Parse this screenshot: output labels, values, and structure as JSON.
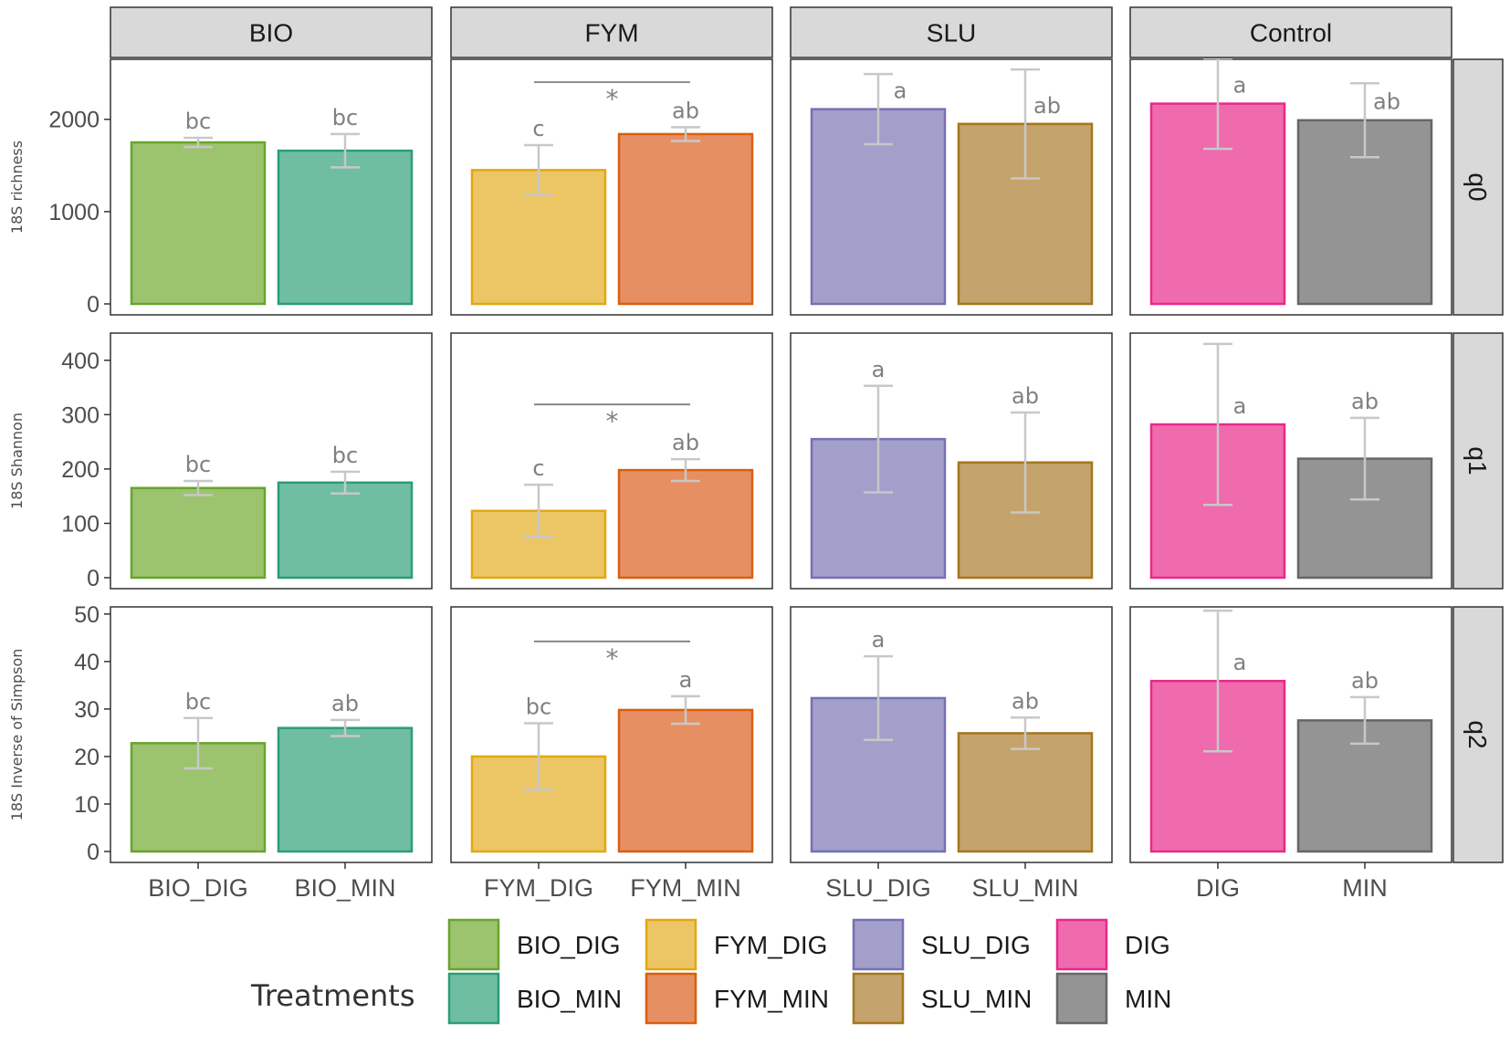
{
  "chart_data": {
    "type": "bar",
    "facet_columns": [
      "BIO",
      "FYM",
      "SLU",
      "Control"
    ],
    "facet_rows": [
      {
        "strip": "q0",
        "ylabel": "18S richness",
        "ylim": [
          0,
          2650
        ],
        "yticks": [
          0,
          1000,
          2000
        ]
      },
      {
        "strip": "q1",
        "ylabel": "18S Shannon",
        "ylim": [
          0,
          450
        ],
        "yticks": [
          0,
          100,
          200,
          300,
          400
        ]
      },
      {
        "strip": "q2",
        "ylabel": "18S Inverse of Simpson",
        "ylim": [
          0,
          51.5
        ],
        "yticks": [
          0,
          10,
          20,
          30,
          40,
          50
        ]
      }
    ],
    "categories": [
      [
        "BIO_DIG",
        "BIO_MIN"
      ],
      [
        "FYM_DIG",
        "FYM_MIN"
      ],
      [
        "SLU_DIG",
        "SLU_MIN"
      ],
      [
        "DIG",
        "MIN"
      ]
    ],
    "series": [
      {
        "row": "q0",
        "values": [
          [
            1750,
            1660
          ],
          [
            1450,
            1840
          ],
          [
            2110,
            1950
          ],
          [
            2170,
            1990
          ]
        ],
        "errors": [
          [
            50,
            180
          ],
          [
            270,
            75
          ],
          [
            380,
            590
          ],
          [
            490,
            400
          ]
        ],
        "letters": [
          [
            "bc",
            "bc"
          ],
          [
            "c",
            "ab"
          ],
          [
            "a",
            "ab"
          ],
          [
            "a",
            "ab"
          ]
        ],
        "significance": [
          null,
          "*",
          null,
          null
        ]
      },
      {
        "row": "q1",
        "values": [
          [
            165,
            175
          ],
          [
            123,
            198
          ],
          [
            255,
            212
          ],
          [
            282,
            219
          ]
        ],
        "errors": [
          [
            13,
            20
          ],
          [
            48,
            20
          ],
          [
            98,
            92
          ],
          [
            148,
            75
          ]
        ],
        "letters": [
          [
            "bc",
            "bc"
          ],
          [
            "c",
            "ab"
          ],
          [
            "a",
            "ab"
          ],
          [
            "a",
            "ab"
          ]
        ],
        "significance": [
          null,
          "*",
          null,
          null
        ]
      },
      {
        "row": "q2",
        "values": [
          [
            22.8,
            26.0
          ],
          [
            20.0,
            29.8
          ],
          [
            32.3,
            24.9
          ],
          [
            35.9,
            27.6
          ]
        ],
        "errors": [
          [
            5.3,
            1.7
          ],
          [
            7.0,
            2.9
          ],
          [
            8.8,
            3.3
          ],
          [
            14.8,
            4.9
          ]
        ],
        "letters": [
          [
            "bc",
            "ab"
          ],
          [
            "bc",
            "a"
          ],
          [
            "a",
            "ab"
          ],
          [
            "a",
            "ab"
          ]
        ],
        "significance": [
          null,
          "*",
          null,
          null
        ]
      }
    ],
    "colors": {
      "fill": [
        [
          "#9cc36e",
          "#6fbea2"
        ],
        [
          "#ecc565",
          "#e68f63"
        ],
        [
          "#a29fcb",
          "#c4a36d"
        ],
        [
          "#f06aae",
          "#949494"
        ]
      ],
      "stroke": [
        [
          "#68a42c",
          "#2a9d78"
        ],
        [
          "#e2a80e",
          "#d95f0e"
        ],
        [
          "#7670b3",
          "#a6761d"
        ],
        [
          "#e7298a",
          "#666666"
        ]
      ],
      "error": "#c8c8c8",
      "letter": "#808080",
      "panel_border": "#333333",
      "strip_fill": "#d9d9d9"
    },
    "legend": {
      "title": "Treatments",
      "position": "bottom",
      "entries": [
        {
          "label": "BIO_DIG",
          "fill": "#9cc36e",
          "stroke": "#68a42c"
        },
        {
          "label": "BIO_MIN",
          "fill": "#6fbea2",
          "stroke": "#2a9d78"
        },
        {
          "label": "FYM_DIG",
          "fill": "#ecc565",
          "stroke": "#e2a80e"
        },
        {
          "label": "FYM_MIN",
          "fill": "#e68f63",
          "stroke": "#d95f0e"
        },
        {
          "label": "SLU_DIG",
          "fill": "#a29fcb",
          "stroke": "#7670b3"
        },
        {
          "label": "SLU_MIN",
          "fill": "#c4a36d",
          "stroke": "#a6761d"
        },
        {
          "label": "DIG",
          "fill": "#f06aae",
          "stroke": "#e7298a"
        },
        {
          "label": "MIN",
          "fill": "#949494",
          "stroke": "#666666"
        }
      ]
    }
  }
}
